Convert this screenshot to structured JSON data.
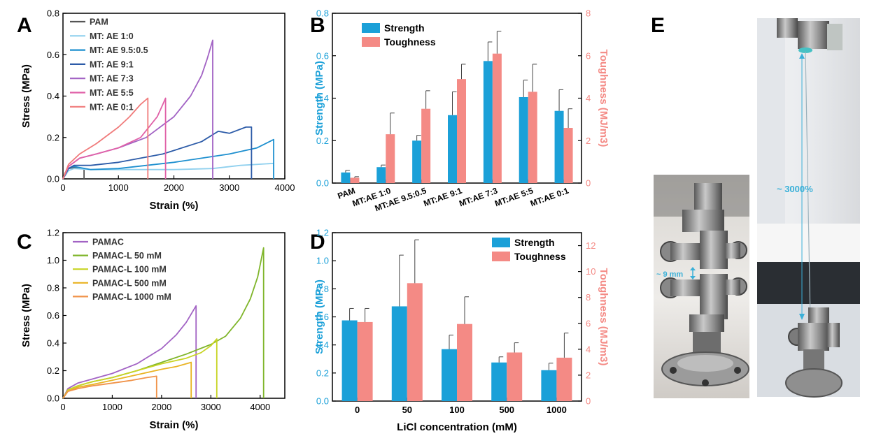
{
  "panels": {
    "A": "A",
    "B": "B",
    "C": "C",
    "D": "D",
    "E": "E"
  },
  "colors": {
    "strength": "#1ba0d8",
    "toughness": "#f48a85",
    "axis_right": "#f48a85",
    "axis_left": "#1ba0d8",
    "photo_annot": "#3ab0d8"
  },
  "chart_data": [
    {
      "id": "A",
      "type": "line",
      "xlabel": "Strain (%)",
      "ylabel": "Stress (MPa)",
      "xlim": [
        0,
        4000
      ],
      "ylim": [
        0,
        0.8
      ],
      "xticks": [
        0,
        1000,
        2000,
        3000,
        4000
      ],
      "yticks": [
        0.0,
        0.2,
        0.4,
        0.6,
        0.8
      ],
      "legend_position": "top-left",
      "series": [
        {
          "name": "PAM",
          "color": "#555555",
          "x": [
            0,
            40,
            100,
            200,
            300,
            380
          ],
          "y": [
            0,
            0.03,
            0.05,
            0.055,
            0.052,
            0.05
          ],
          "break": [
            380,
            0.05
          ]
        },
        {
          "name": "MT: AE 1:0",
          "color": "#8fd0ee",
          "x": [
            0,
            100,
            200,
            500,
            1000,
            2000,
            2700,
            3200,
            3800
          ],
          "y": [
            0,
            0.04,
            0.05,
            0.045,
            0.045,
            0.045,
            0.05,
            0.065,
            0.075
          ],
          "break": [
            3800,
            0.075
          ]
        },
        {
          "name": "MT: AE 9.5:0.5",
          "color": "#1d8fcf",
          "x": [
            0,
            100,
            200,
            500,
            1000,
            2000,
            3000,
            3500,
            3800
          ],
          "y": [
            0,
            0.05,
            0.06,
            0.045,
            0.05,
            0.08,
            0.12,
            0.15,
            0.19
          ],
          "break": [
            3800,
            0.19
          ]
        },
        {
          "name": "MT: AE 9:1",
          "color": "#2c5ba8",
          "x": [
            0,
            100,
            200,
            500,
            1000,
            1800,
            2500,
            2800,
            3000,
            3300,
            3400
          ],
          "y": [
            0,
            0.05,
            0.065,
            0.065,
            0.08,
            0.12,
            0.18,
            0.23,
            0.22,
            0.25,
            0.25
          ],
          "break": [
            3400,
            0.25
          ]
        },
        {
          "name": "MT: AE 7:3",
          "color": "#a263c4",
          "x": [
            0,
            100,
            300,
            600,
            1000,
            1500,
            2000,
            2300,
            2500,
            2600,
            2700
          ],
          "y": [
            0,
            0.06,
            0.1,
            0.12,
            0.15,
            0.2,
            0.3,
            0.4,
            0.5,
            0.58,
            0.67
          ],
          "break": [
            2700,
            0.67
          ]
        },
        {
          "name": "MT: AE 5:5",
          "color": "#e061a8",
          "x": [
            0,
            100,
            300,
            600,
            1000,
            1400,
            1700,
            1800,
            1850
          ],
          "y": [
            0,
            0.06,
            0.1,
            0.12,
            0.15,
            0.2,
            0.3,
            0.36,
            0.39
          ],
          "break": [
            1850,
            0.39
          ]
        },
        {
          "name": "MT: AE 0:1",
          "color": "#f07b7b",
          "x": [
            0,
            100,
            300,
            600,
            1000,
            1200,
            1400,
            1530
          ],
          "y": [
            0,
            0.07,
            0.12,
            0.17,
            0.25,
            0.3,
            0.36,
            0.39
          ],
          "break": [
            1530,
            0.39
          ]
        }
      ]
    },
    {
      "id": "B",
      "type": "bar",
      "ylabel": "Strength (MPa)",
      "ylabel_right": "Toughness (MJ/m3)",
      "ylim": [
        0,
        0.8
      ],
      "ylim_right": [
        0,
        8
      ],
      "yticks": [
        0.0,
        0.2,
        0.4,
        0.6,
        0.8
      ],
      "yticks_right": [
        0,
        2,
        4,
        6,
        8
      ],
      "categories": [
        "PAM",
        "MT:AE 1:0",
        "MT:AE 9.5:0.5",
        "MT:AE 9:1",
        "MT:AE 7:3",
        "MT:AE 5:5",
        "MT:AE 0:1"
      ],
      "series": [
        {
          "name": "Strength",
          "axis": "left",
          "values": [
            0.05,
            0.075,
            0.2,
            0.32,
            0.575,
            0.405,
            0.34
          ],
          "errors": [
            0.01,
            0.01,
            0.025,
            0.11,
            0.09,
            0.08,
            0.1
          ]
        },
        {
          "name": "Toughness",
          "axis": "right",
          "values": [
            0.25,
            2.3,
            3.5,
            4.9,
            6.1,
            4.3,
            2.6
          ],
          "errors": [
            0.05,
            1.0,
            0.85,
            0.7,
            1.05,
            1.3,
            0.9
          ]
        }
      ],
      "legend_position": "top-left"
    },
    {
      "id": "C",
      "type": "line",
      "xlabel": "Strain (%)",
      "ylabel": "Stress (MPa)",
      "xlim": [
        0,
        4500
      ],
      "ylim": [
        0,
        1.2
      ],
      "xticks": [
        0,
        1000,
        2000,
        3000,
        4000
      ],
      "yticks": [
        0.0,
        0.2,
        0.4,
        0.6,
        0.8,
        1.0,
        1.2
      ],
      "legend_position": "top-left",
      "series": [
        {
          "name": "PAMAC",
          "color": "#a263c4",
          "x": [
            0,
            100,
            300,
            600,
            1000,
            1500,
            2000,
            2300,
            2500,
            2700
          ],
          "y": [
            0,
            0.07,
            0.11,
            0.14,
            0.18,
            0.25,
            0.36,
            0.46,
            0.55,
            0.67
          ],
          "break": [
            2700,
            0.67
          ]
        },
        {
          "name": "PAMAC-L 50 mM",
          "color": "#7fb52a",
          "x": [
            0,
            100,
            300,
            600,
            1000,
            1500,
            2000,
            2500,
            3000,
            3300,
            3600,
            3800,
            3950,
            4070
          ],
          "y": [
            0,
            0.06,
            0.09,
            0.12,
            0.15,
            0.2,
            0.26,
            0.32,
            0.39,
            0.45,
            0.58,
            0.72,
            0.88,
            1.09
          ],
          "break": [
            4070,
            1.09
          ]
        },
        {
          "name": "PAMAC-L 100 mM",
          "color": "#c8d425",
          "x": [
            0,
            100,
            300,
            600,
            1000,
            1500,
            2000,
            2500,
            2800,
            3000,
            3120
          ],
          "y": [
            0,
            0.06,
            0.09,
            0.12,
            0.15,
            0.2,
            0.25,
            0.29,
            0.33,
            0.38,
            0.43
          ],
          "break": [
            3120,
            0.43
          ]
        },
        {
          "name": "PAMAC-L 500 mM",
          "color": "#e9b322",
          "x": [
            0,
            100,
            300,
            600,
            1000,
            1500,
            2000,
            2300,
            2600
          ],
          "y": [
            0,
            0.05,
            0.08,
            0.1,
            0.13,
            0.17,
            0.21,
            0.23,
            0.26
          ],
          "break": [
            2600,
            0.26
          ]
        },
        {
          "name": "PAMAC-L 1000 mM",
          "color": "#f0934a",
          "x": [
            0,
            100,
            300,
            600,
            1000,
            1400,
            1700,
            1900
          ],
          "y": [
            0,
            0.05,
            0.07,
            0.09,
            0.11,
            0.13,
            0.15,
            0.16
          ],
          "break": [
            1900,
            0.16
          ]
        }
      ]
    },
    {
      "id": "D",
      "type": "bar",
      "xlabel": "LiCl concentration (mM)",
      "ylabel": "Strength (MPa)",
      "ylabel_right": "Toughness (MJ/m3)",
      "ylim": [
        0,
        1.2
      ],
      "ylim_right": [
        0,
        13
      ],
      "yticks": [
        0.0,
        0.2,
        0.4,
        0.6,
        0.8,
        1.0,
        1.2
      ],
      "yticks_right": [
        0,
        2,
        4,
        6,
        8,
        10,
        12
      ],
      "categories": [
        "0",
        "50",
        "100",
        "500",
        "1000"
      ],
      "series": [
        {
          "name": "Strength",
          "axis": "left",
          "values": [
            0.575,
            0.675,
            0.37,
            0.275,
            0.22
          ],
          "errors": [
            0.085,
            0.365,
            0.1,
            0.04,
            0.05
          ]
        },
        {
          "name": "Toughness",
          "axis": "right",
          "values": [
            6.1,
            9.1,
            5.95,
            3.75,
            3.35
          ],
          "errors": [
            1.05,
            3.35,
            2.1,
            0.75,
            1.9
          ]
        }
      ],
      "legend_position": "top-right"
    }
  ],
  "photo": {
    "gap_label": "~ 9 mm",
    "strain_label": "~ 3000%"
  }
}
